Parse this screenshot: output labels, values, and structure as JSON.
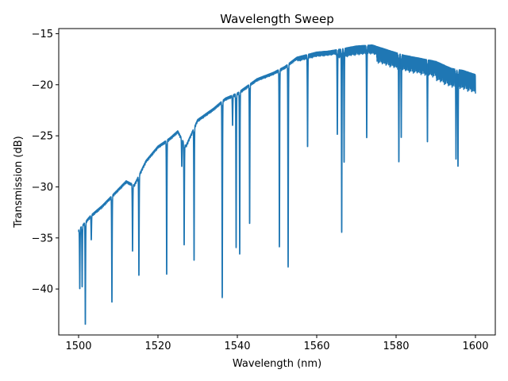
{
  "chart_data": {
    "type": "line",
    "title": "Wavelength Sweep",
    "xlabel": "Wavelength (nm)",
    "ylabel": "Transmission (dB)",
    "xlim": [
      1495,
      1605
    ],
    "ylim": [
      -44.5,
      -14.5
    ],
    "xticks": [
      1500,
      1520,
      1540,
      1560,
      1580,
      1600
    ],
    "yticks": [
      -40,
      -35,
      -30,
      -25,
      -20,
      -15
    ],
    "grid": false,
    "color": "#1f77b4",
    "series": [
      {
        "x": [
          1500,
          1503,
          1506,
          1510,
          1512,
          1514,
          1517,
          1520,
          1523,
          1525,
          1527,
          1530,
          1534,
          1537,
          1540,
          1545,
          1549,
          1552,
          1555,
          1560,
          1563,
          1566,
          1570,
          1574,
          1578,
          1582,
          1586,
          1590,
          1594,
          1597,
          1600
        ],
        "y": [
          -34.2,
          -32.8,
          -31.8,
          -30.2,
          -29.4,
          -29.8,
          -27.4,
          -26.0,
          -25.2,
          -24.5,
          -26.0,
          -23.4,
          -22.3,
          -21.3,
          -20.8,
          -19.4,
          -18.8,
          -18.2,
          -17.3,
          -16.8,
          -16.7,
          -16.5,
          -16.2,
          -16.1,
          -16.6,
          -17.1,
          -17.4,
          -17.7,
          -18.4,
          -18.6,
          -19.0
        ]
      }
    ],
    "dips": [
      {
        "x": 1500.3,
        "y": -40.0
      },
      {
        "x": 1500.9,
        "y": -39.8
      },
      {
        "x": 1501.7,
        "y": -43.5
      },
      {
        "x": 1503.2,
        "y": -35.2
      },
      {
        "x": 1508.4,
        "y": -41.3
      },
      {
        "x": 1513.6,
        "y": -36.3
      },
      {
        "x": 1515.2,
        "y": -38.7
      },
      {
        "x": 1522.2,
        "y": -38.6
      },
      {
        "x": 1526.0,
        "y": -28.0
      },
      {
        "x": 1526.6,
        "y": -35.7
      },
      {
        "x": 1529.1,
        "y": -37.2
      },
      {
        "x": 1536.2,
        "y": -40.9
      },
      {
        "x": 1538.8,
        "y": -24.0
      },
      {
        "x": 1539.7,
        "y": -36.0
      },
      {
        "x": 1540.6,
        "y": -36.6
      },
      {
        "x": 1543.1,
        "y": -33.6
      },
      {
        "x": 1550.6,
        "y": -35.9
      },
      {
        "x": 1552.8,
        "y": -37.9
      },
      {
        "x": 1557.7,
        "y": -26.1
      },
      {
        "x": 1565.2,
        "y": -24.9
      },
      {
        "x": 1566.3,
        "y": -34.5
      },
      {
        "x": 1566.9,
        "y": -27.6
      },
      {
        "x": 1572.6,
        "y": -25.2
      },
      {
        "x": 1580.7,
        "y": -27.6
      },
      {
        "x": 1581.3,
        "y": -25.2
      },
      {
        "x": 1587.9,
        "y": -25.6
      },
      {
        "x": 1595.1,
        "y": -27.3
      },
      {
        "x": 1595.6,
        "y": -28.0
      }
    ]
  }
}
